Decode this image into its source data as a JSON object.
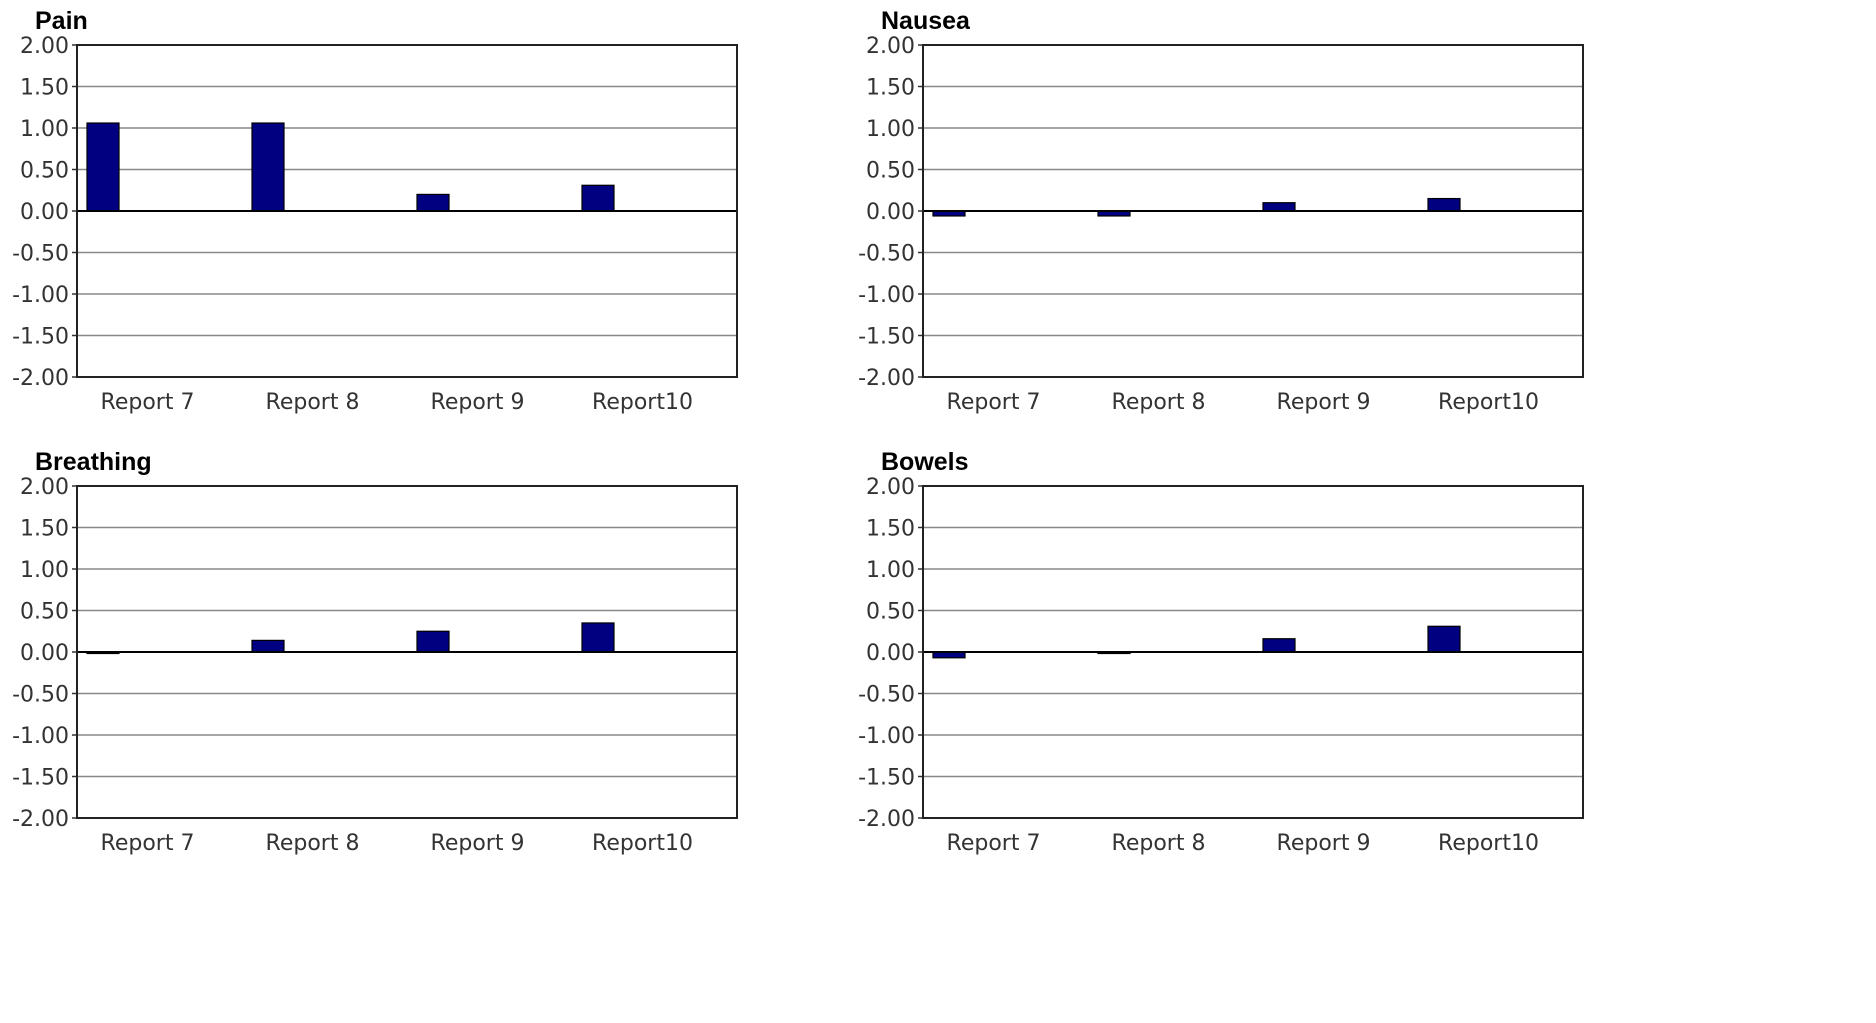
{
  "chart_data": [
    {
      "type": "bar",
      "title": "Pain",
      "categories": [
        "Report 7",
        "Report 8",
        "Report 9",
        "Report10"
      ],
      "values": [
        1.06,
        1.06,
        0.2,
        0.31
      ],
      "ylim": [
        -2.0,
        2.0
      ],
      "yticks": [
        "2.00",
        "1.50",
        "1.00",
        "0.50",
        "0.00",
        "-0.50",
        "-1.00",
        "-1.50",
        "-2.00"
      ],
      "grid": true,
      "bar_color": "#000080"
    },
    {
      "type": "bar",
      "title": "Nausea",
      "categories": [
        "Report 7",
        "Report 8",
        "Report 9",
        "Report10"
      ],
      "values": [
        -0.06,
        -0.06,
        0.1,
        0.15
      ],
      "ylim": [
        -2.0,
        2.0
      ],
      "yticks": [
        "2.00",
        "1.50",
        "1.00",
        "0.50",
        "0.00",
        "-0.50",
        "-1.00",
        "-1.50",
        "-2.00"
      ],
      "grid": true,
      "bar_color": "#000080"
    },
    {
      "type": "bar",
      "title": "Breathing",
      "categories": [
        "Report 7",
        "Report 8",
        "Report 9",
        "Report10"
      ],
      "values": [
        0.0,
        0.14,
        0.25,
        0.35
      ],
      "ylim": [
        -2.0,
        2.0
      ],
      "yticks": [
        "2.00",
        "1.50",
        "1.00",
        "0.50",
        "0.00",
        "-0.50",
        "-1.00",
        "-1.50",
        "-2.00"
      ],
      "grid": true,
      "bar_color": "#000080"
    },
    {
      "type": "bar",
      "title": "Bowels",
      "categories": [
        "Report 7",
        "Report 8",
        "Report 9",
        "Report10"
      ],
      "values": [
        -0.07,
        -0.01,
        0.16,
        0.31
      ],
      "ylim": [
        -2.0,
        2.0
      ],
      "yticks": [
        "2.00",
        "1.50",
        "1.00",
        "0.50",
        "0.00",
        "-0.50",
        "-1.00",
        "-1.50",
        "-2.00"
      ],
      "grid": true,
      "bar_color": "#000080"
    }
  ]
}
